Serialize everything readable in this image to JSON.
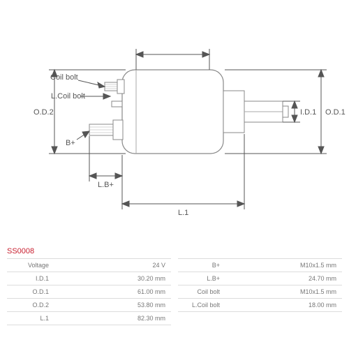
{
  "part_number": "SS0008",
  "diagram": {
    "labels": {
      "coil_bolt": "Coil bolt",
      "l_coil_bolt": "L.Coil bolt",
      "b_plus": "B+",
      "l_b_plus": "L.B+",
      "od2": "O.D.2",
      "od1": "O.D.1",
      "id1": "I.D.1",
      "l1": "L.1"
    },
    "colors": {
      "line": "#555555",
      "body_fill": "#f5f5f5",
      "body_stroke": "#888888"
    }
  },
  "specs_left": [
    {
      "label": "Voltage",
      "value": "24 V"
    },
    {
      "label": "I.D.1",
      "value": "30.20 mm"
    },
    {
      "label": "O.D.1",
      "value": "61.00 mm"
    },
    {
      "label": "O.D.2",
      "value": "53.80 mm"
    },
    {
      "label": "L.1",
      "value": "82.30 mm"
    }
  ],
  "specs_right": [
    {
      "label": "B+",
      "value": "M10x1.5 mm"
    },
    {
      "label": "L.B+",
      "value": "24.70 mm"
    },
    {
      "label": "Coil bolt",
      "value": "M10x1.5 mm"
    },
    {
      "label": "L.Coil bolt",
      "value": "18.00 mm"
    }
  ]
}
